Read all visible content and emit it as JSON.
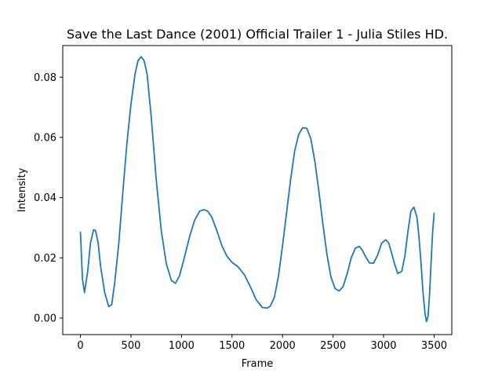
{
  "chart_data": {
    "type": "line",
    "title": "Save the Last Dance (2001) Official Trailer  1 - Julia Stiles HD.",
    "xlabel": "Frame",
    "ylabel": "Intensity",
    "xlim": [
      -175,
      3675
    ],
    "ylim": [
      -0.0055,
      0.0905
    ],
    "xticks": [
      0,
      500,
      1000,
      1500,
      2000,
      2500,
      3000,
      3500
    ],
    "yticks": [
      0.0,
      0.02,
      0.04,
      0.06,
      0.08
    ],
    "xtick_labels": [
      "0",
      "500",
      "1000",
      "1500",
      "2000",
      "2500",
      "3000",
      "3500"
    ],
    "ytick_labels": [
      "0.00",
      "0.02",
      "0.04",
      "0.06",
      "0.08"
    ],
    "grid": false,
    "line_color": "#1f77b4",
    "series": [
      {
        "x": [
          0,
          20,
          40,
          70,
          100,
          130,
          150,
          175,
          200,
          240,
          280,
          310,
          340,
          380,
          420,
          460,
          500,
          540,
          570,
          600,
          630,
          660,
          700,
          750,
          800,
          850,
          900,
          940,
          980,
          1020,
          1080,
          1130,
          1180,
          1220,
          1260,
          1300,
          1350,
          1400,
          1450,
          1500,
          1560,
          1620,
          1680,
          1740,
          1800,
          1850,
          1880,
          1920,
          1960,
          2000,
          2040,
          2080,
          2120,
          2160,
          2200,
          2240,
          2280,
          2320,
          2360,
          2400,
          2440,
          2480,
          2520,
          2560,
          2600,
          2640,
          2680,
          2720,
          2760,
          2790,
          2820,
          2860,
          2900,
          2940,
          2980,
          3020,
          3050,
          3080,
          3110,
          3140,
          3180,
          3210,
          3240,
          3270,
          3300,
          3330,
          3350,
          3370,
          3390,
          3410,
          3425,
          3440,
          3455,
          3470,
          3485,
          3500
        ],
        "y": [
          0.0285,
          0.013,
          0.0085,
          0.015,
          0.025,
          0.0293,
          0.029,
          0.025,
          0.017,
          0.0085,
          0.0038,
          0.0045,
          0.012,
          0.025,
          0.042,
          0.058,
          0.071,
          0.081,
          0.0855,
          0.0868,
          0.0855,
          0.081,
          0.067,
          0.046,
          0.029,
          0.018,
          0.0125,
          0.0115,
          0.014,
          0.019,
          0.027,
          0.0325,
          0.0355,
          0.036,
          0.0355,
          0.0335,
          0.029,
          0.024,
          0.0205,
          0.0185,
          0.017,
          0.0145,
          0.0105,
          0.006,
          0.0035,
          0.0033,
          0.004,
          0.007,
          0.014,
          0.024,
          0.035,
          0.046,
          0.0555,
          0.061,
          0.0632,
          0.063,
          0.0595,
          0.052,
          0.042,
          0.031,
          0.021,
          0.0135,
          0.0098,
          0.009,
          0.0105,
          0.0148,
          0.02,
          0.0232,
          0.0238,
          0.0225,
          0.0205,
          0.0183,
          0.0182,
          0.0208,
          0.0248,
          0.026,
          0.025,
          0.0215,
          0.0178,
          0.0148,
          0.0155,
          0.0205,
          0.0285,
          0.0355,
          0.0368,
          0.0335,
          0.027,
          0.0185,
          0.0085,
          0.0015,
          -0.0012,
          0.0005,
          0.008,
          0.0185,
          0.0285,
          0.0348
        ]
      }
    ]
  }
}
